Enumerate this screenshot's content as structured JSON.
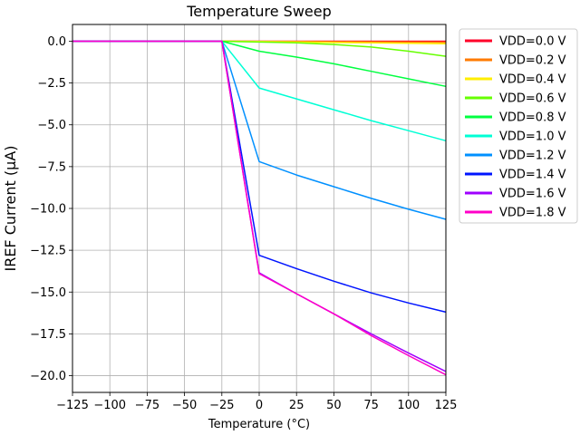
{
  "chart_data": {
    "type": "line",
    "title": "Temperature Sweep",
    "xlabel": "Temperature (°C)",
    "ylabel": "IREF Current (µA)",
    "xlim": [
      -125,
      125
    ],
    "ylim": [
      -21,
      1
    ],
    "x_ticks": [
      -125,
      -100,
      -75,
      -50,
      -25,
      0,
      25,
      50,
      75,
      100,
      125
    ],
    "x_tick_labels": [
      "−125",
      "−100",
      "−75",
      "−50",
      "−25",
      "0",
      "25",
      "50",
      "75",
      "100",
      "125"
    ],
    "y_ticks": [
      0,
      -2.5,
      -5,
      -7.5,
      -10,
      -12.5,
      -15,
      -17.5,
      -20
    ],
    "y_tick_labels": [
      "0.0",
      "−2.5",
      "−5.0",
      "−7.5",
      "−10.0",
      "−12.5",
      "−15.0",
      "−17.5",
      "−20.0"
    ],
    "grid": true,
    "legend_position": "outside-right",
    "x": [
      -125,
      -25,
      0,
      25,
      50,
      75,
      100,
      125
    ],
    "series": [
      {
        "name": "VDD=0.0 V",
        "color": "#ff0029",
        "values": [
          0,
          0,
          0,
          0,
          0,
          0,
          0,
          0
        ]
      },
      {
        "name": "VDD=0.2 V",
        "color": "#ff7b00",
        "values": [
          0,
          0,
          -0.01,
          -0.02,
          -0.03,
          -0.04,
          -0.05,
          -0.06
        ]
      },
      {
        "name": "VDD=0.4 V",
        "color": "#ffee00",
        "values": [
          0,
          0,
          -0.02,
          -0.05,
          -0.08,
          -0.1,
          -0.12,
          -0.15
        ]
      },
      {
        "name": "VDD=0.6 V",
        "color": "#66ff00",
        "values": [
          0,
          0,
          -0.05,
          -0.1,
          -0.2,
          -0.35,
          -0.6,
          -0.9
        ]
      },
      {
        "name": "VDD=0.8 V",
        "color": "#00ff40",
        "values": [
          0,
          0,
          -0.6,
          -0.95,
          -1.35,
          -1.8,
          -2.25,
          -2.7
        ]
      },
      {
        "name": "VDD=1.0 V",
        "color": "#00ffd5",
        "values": [
          0,
          0,
          -2.8,
          -3.45,
          -4.1,
          -4.75,
          -5.35,
          -5.95
        ]
      },
      {
        "name": "VDD=1.2 V",
        "color": "#0090ff",
        "values": [
          0,
          0,
          -7.2,
          -8.0,
          -8.7,
          -9.4,
          -10.05,
          -10.65
        ]
      },
      {
        "name": "VDD=1.4 V",
        "color": "#0014ff",
        "values": [
          0,
          0,
          -12.8,
          -13.6,
          -14.35,
          -15.05,
          -15.65,
          -16.2
        ]
      },
      {
        "name": "VDD=1.6 V",
        "color": "#9f00ff",
        "values": [
          0,
          0,
          -13.85,
          -15.1,
          -16.3,
          -17.5,
          -18.65,
          -19.75
        ]
      },
      {
        "name": "VDD=1.8 V",
        "color": "#ff00c8",
        "values": [
          0,
          0,
          -13.9,
          -15.1,
          -16.3,
          -17.6,
          -18.8,
          -19.95
        ]
      }
    ]
  }
}
